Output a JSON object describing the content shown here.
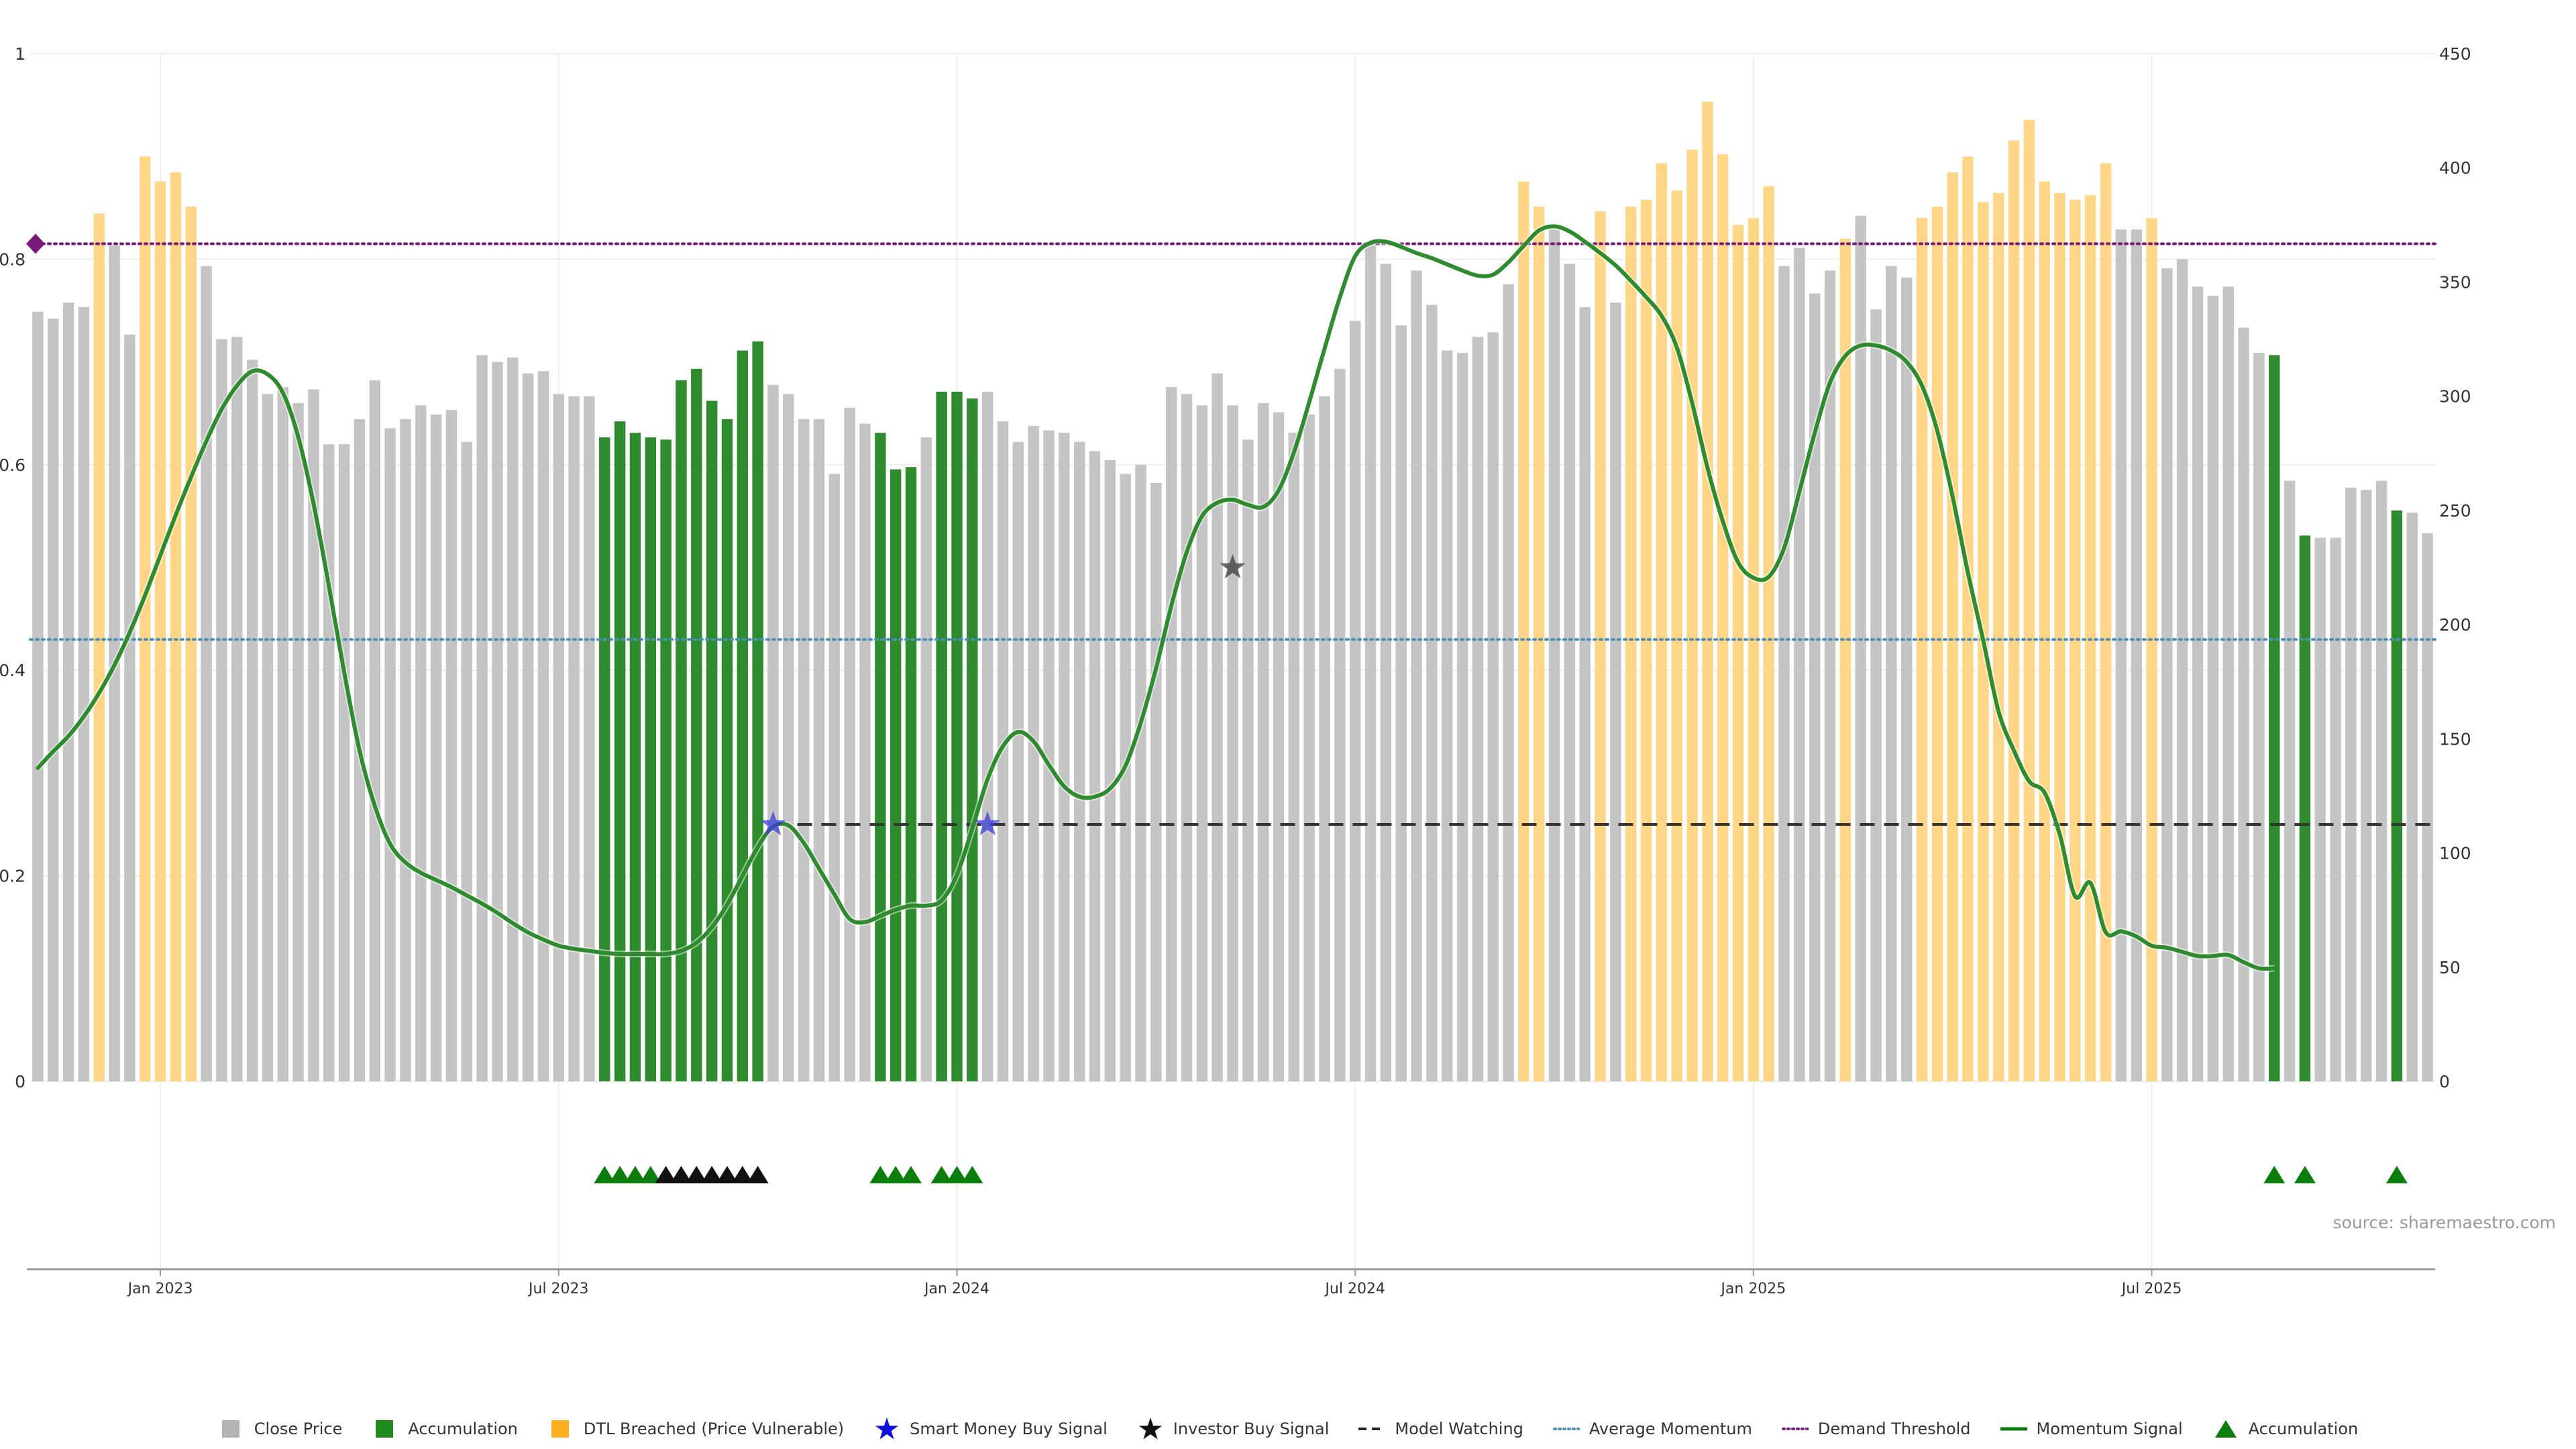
{
  "chart_data": {
    "type": "bar",
    "title": "",
    "xlabel": "",
    "ylabel": "",
    "y_left_lim": [
      0,
      1
    ],
    "y_left_ticks": [
      "0",
      "0.2",
      "0.4",
      "0.6",
      "0.8",
      "1"
    ],
    "y_right_lim": [
      0,
      450
    ],
    "y_right_ticks": [
      "0",
      "50",
      "100",
      "150",
      "200",
      "250",
      "300",
      "350",
      "400",
      "450"
    ],
    "x_tick_labels": [
      "Jan 2023",
      "Jul 2023",
      "Jan 2024",
      "Jul 2024",
      "Jan 2025",
      "Jul 2025"
    ],
    "x_tick_bar_index": [
      8,
      34,
      60,
      86,
      112,
      138
    ],
    "bar_count": 157,
    "close_price_values": [
      337,
      334,
      341,
      339,
      380,
      366,
      327,
      405,
      394,
      398,
      383,
      357,
      325,
      326,
      316,
      301,
      304,
      297,
      303,
      279,
      279,
      290,
      307,
      286,
      290,
      296,
      292,
      294,
      280,
      318,
      315,
      317,
      310,
      311,
      301,
      300,
      300,
      282,
      289,
      284,
      282,
      281,
      307,
      312,
      298,
      290,
      320,
      324,
      305,
      301,
      290,
      290,
      266,
      295,
      288,
      284,
      268,
      269,
      282,
      302,
      302,
      299,
      302,
      289,
      280,
      287,
      285,
      284,
      280,
      276,
      272,
      266,
      270,
      262,
      304,
      301,
      296,
      310,
      296,
      281,
      297,
      293,
      284,
      292,
      300,
      312,
      333,
      366,
      358,
      331,
      355,
      340,
      320,
      319,
      326,
      328,
      349,
      394,
      383,
      373,
      358,
      339,
      381,
      341,
      383,
      386,
      402,
      390,
      408,
      429,
      406,
      375,
      378,
      392,
      357,
      365,
      345,
      355,
      369,
      379,
      338,
      357,
      352,
      378,
      383,
      398,
      405,
      385,
      389,
      412,
      421,
      394,
      389,
      386,
      388,
      402,
      373,
      373,
      378,
      356,
      360,
      348,
      344,
      348,
      330,
      319,
      318,
      263,
      239,
      238,
      238,
      260,
      259,
      263,
      250,
      249,
      240,
      240,
      240
    ],
    "bar_category": [
      "close",
      "close",
      "close",
      "close",
      "dtl",
      "close",
      "close",
      "dtl",
      "dtl",
      "dtl",
      "dtl",
      "close",
      "close",
      "close",
      "close",
      "close",
      "close",
      "close",
      "close",
      "close",
      "close",
      "close",
      "close",
      "close",
      "close",
      "close",
      "close",
      "close",
      "close",
      "close",
      "close",
      "close",
      "close",
      "close",
      "close",
      "close",
      "close",
      "close",
      "close",
      "close",
      "close",
      "close",
      "close",
      "close",
      "close",
      "close",
      "close",
      "close",
      "close",
      "close",
      "close",
      "close",
      "close",
      "close",
      "close",
      "close",
      "close",
      "close",
      "close",
      "close",
      "close",
      "close",
      "close",
      "close",
      "close",
      "close",
      "close",
      "close",
      "close",
      "close",
      "close",
      "close",
      "close",
      "close",
      "close",
      "close",
      "close",
      "close",
      "close",
      "close",
      "close",
      "close",
      "close",
      "close",
      "close",
      "close",
      "close",
      "close",
      "close",
      "close",
      "close",
      "close",
      "close",
      "close",
      "close",
      "close",
      "close",
      "dtl",
      "dtl",
      "close",
      "close",
      "close",
      "dtl",
      "close",
      "dtl",
      "dtl",
      "dtl",
      "dtl",
      "dtl",
      "dtl",
      "dtl",
      "dtl",
      "dtl",
      "dtl",
      "close",
      "close",
      "close",
      "close",
      "dtl",
      "close",
      "close",
      "close",
      "close",
      "dtl",
      "dtl",
      "dtl",
      "dtl",
      "dtl",
      "dtl",
      "dtl",
      "dtl",
      "dtl",
      "dtl",
      "dtl",
      "dtl",
      "dtl",
      "close",
      "close",
      "dtl",
      "close",
      "close",
      "close",
      "close",
      "close",
      "close",
      "close",
      "close",
      "close",
      "close",
      "close",
      "close",
      "close",
      "close",
      "close",
      "close",
      "close",
      "close",
      "close",
      "close",
      "close",
      "close",
      "close"
    ],
    "accumulation_bar_index": [
      37,
      38,
      39,
      40,
      41,
      42,
      43,
      44,
      45,
      46,
      47,
      55,
      56,
      57,
      59,
      60,
      61,
      146,
      148,
      154
    ],
    "momentum_signal": [
      [
        0,
        0.305
      ],
      [
        1,
        0.321
      ],
      [
        2,
        0.336
      ],
      [
        3,
        0.355
      ],
      [
        4,
        0.378
      ],
      [
        5,
        0.405
      ],
      [
        6,
        0.437
      ],
      [
        7,
        0.473
      ],
      [
        8,
        0.512
      ],
      [
        9,
        0.551
      ],
      [
        10,
        0.588
      ],
      [
        11,
        0.623
      ],
      [
        12,
        0.654
      ],
      [
        13,
        0.677
      ],
      [
        14,
        0.691
      ],
      [
        15,
        0.688
      ],
      [
        16,
        0.67
      ],
      [
        17,
        0.627
      ],
      [
        18,
        0.562
      ],
      [
        19,
        0.482
      ],
      [
        20,
        0.398
      ],
      [
        21,
        0.322
      ],
      [
        22,
        0.268
      ],
      [
        23,
        0.231
      ],
      [
        24,
        0.213
      ],
      [
        25,
        0.203
      ],
      [
        26,
        0.196
      ],
      [
        27,
        0.189
      ],
      [
        28,
        0.181
      ],
      [
        29,
        0.173
      ],
      [
        30,
        0.164
      ],
      [
        31,
        0.154
      ],
      [
        32,
        0.145
      ],
      [
        33,
        0.138
      ],
      [
        34,
        0.132
      ],
      [
        35,
        0.129
      ],
      [
        36,
        0.127
      ],
      [
        37,
        0.125
      ],
      [
        38,
        0.124
      ],
      [
        39,
        0.124
      ],
      [
        40,
        0.124
      ],
      [
        41,
        0.124
      ],
      [
        42,
        0.127
      ],
      [
        43,
        0.135
      ],
      [
        44,
        0.15
      ],
      [
        45,
        0.172
      ],
      [
        46,
        0.2
      ],
      [
        47,
        0.228
      ],
      [
        48,
        0.248
      ],
      [
        49,
        0.249
      ],
      [
        50,
        0.232
      ],
      [
        51,
        0.207
      ],
      [
        52,
        0.182
      ],
      [
        53,
        0.158
      ],
      [
        54,
        0.155
      ],
      [
        55,
        0.161
      ],
      [
        56,
        0.167
      ],
      [
        57,
        0.171
      ],
      [
        58,
        0.171
      ],
      [
        59,
        0.176
      ],
      [
        60,
        0.201
      ],
      [
        61,
        0.246
      ],
      [
        62,
        0.294
      ],
      [
        63,
        0.326
      ],
      [
        64,
        0.34
      ],
      [
        65,
        0.331
      ],
      [
        66,
        0.308
      ],
      [
        67,
        0.287
      ],
      [
        68,
        0.277
      ],
      [
        69,
        0.277
      ],
      [
        70,
        0.285
      ],
      [
        71,
        0.307
      ],
      [
        72,
        0.349
      ],
      [
        73,
        0.402
      ],
      [
        74,
        0.463
      ],
      [
        75,
        0.515
      ],
      [
        76,
        0.55
      ],
      [
        77,
        0.563
      ],
      [
        78,
        0.566
      ],
      [
        79,
        0.561
      ],
      [
        80,
        0.559
      ],
      [
        81,
        0.575
      ],
      [
        82,
        0.612
      ],
      [
        83,
        0.661
      ],
      [
        84,
        0.713
      ],
      [
        85,
        0.763
      ],
      [
        86,
        0.803
      ],
      [
        87,
        0.816
      ],
      [
        88,
        0.817
      ],
      [
        89,
        0.812
      ],
      [
        90,
        0.806
      ],
      [
        91,
        0.801
      ],
      [
        92,
        0.795
      ],
      [
        93,
        0.789
      ],
      [
        94,
        0.784
      ],
      [
        95,
        0.785
      ],
      [
        96,
        0.797
      ],
      [
        97,
        0.813
      ],
      [
        98,
        0.828
      ],
      [
        99,
        0.832
      ],
      [
        100,
        0.827
      ],
      [
        101,
        0.817
      ],
      [
        102,
        0.806
      ],
      [
        103,
        0.794
      ],
      [
        104,
        0.779
      ],
      [
        105,
        0.763
      ],
      [
        106,
        0.745
      ],
      [
        107,
        0.714
      ],
      [
        108,
        0.66
      ],
      [
        109,
        0.597
      ],
      [
        110,
        0.545
      ],
      [
        111,
        0.505
      ],
      [
        112,
        0.49
      ],
      [
        113,
        0.491
      ],
      [
        114,
        0.519
      ],
      [
        115,
        0.574
      ],
      [
        116,
        0.631
      ],
      [
        117,
        0.68
      ],
      [
        118,
        0.706
      ],
      [
        119,
        0.716
      ],
      [
        120,
        0.716
      ],
      [
        121,
        0.711
      ],
      [
        122,
        0.7
      ],
      [
        123,
        0.677
      ],
      [
        124,
        0.633
      ],
      [
        125,
        0.569
      ],
      [
        126,
        0.495
      ],
      [
        127,
        0.429
      ],
      [
        128,
        0.36
      ],
      [
        129,
        0.322
      ],
      [
        130,
        0.292
      ],
      [
        131,
        0.281
      ],
      [
        132,
        0.24
      ],
      [
        133,
        0.18
      ],
      [
        134,
        0.193
      ],
      [
        135,
        0.145
      ],
      [
        136,
        0.146
      ],
      [
        137,
        0.141
      ],
      [
        138,
        0.132
      ],
      [
        139,
        0.13
      ],
      [
        140,
        0.126
      ],
      [
        141,
        0.122
      ],
      [
        142,
        0.122
      ],
      [
        143,
        0.123
      ],
      [
        144,
        0.116
      ],
      [
        145,
        0.11
      ],
      [
        146,
        0.11
      ]
    ],
    "model_watching_level": 0.25,
    "model_watching_start_index": 48,
    "average_momentum_level": 0.43,
    "demand_threshold_level": 0.815,
    "demand_marker_index": 0,
    "smart_money_signals": [
      [
        48,
        0.25
      ],
      [
        62,
        0.25
      ]
    ],
    "investor_signals": [
      [
        78,
        0.5
      ]
    ],
    "triangle_markers": [
      {
        "index": 37,
        "kind": "accumulation"
      },
      {
        "index": 38,
        "kind": "accumulation"
      },
      {
        "index": 39,
        "kind": "accumulation"
      },
      {
        "index": 40,
        "kind": "accumulation"
      },
      {
        "index": 41,
        "kind": "investor"
      },
      {
        "index": 42,
        "kind": "investor"
      },
      {
        "index": 43,
        "kind": "investor"
      },
      {
        "index": 44,
        "kind": "investor"
      },
      {
        "index": 45,
        "kind": "investor"
      },
      {
        "index": 46,
        "kind": "investor"
      },
      {
        "index": 47,
        "kind": "investor"
      },
      {
        "index": 55,
        "kind": "accumulation"
      },
      {
        "index": 56,
        "kind": "accumulation"
      },
      {
        "index": 57,
        "kind": "accumulation"
      },
      {
        "index": 59,
        "kind": "accumulation"
      },
      {
        "index": 60,
        "kind": "accumulation"
      },
      {
        "index": 61,
        "kind": "accumulation"
      },
      {
        "index": 146,
        "kind": "accumulation"
      },
      {
        "index": 148,
        "kind": "accumulation"
      },
      {
        "index": 154,
        "kind": "accumulation"
      }
    ],
    "colors": {
      "close": "#c4c4c4",
      "accumulation": "#2e8b2e",
      "dtl": "#ffd588",
      "momentum": "#2e8b2e",
      "momentum_strong": "#0a7d0a",
      "smart_money": "#3b3bdc",
      "investor": "#444444",
      "model_watching": "#333333",
      "average_momentum": "#4a90b8",
      "demand_threshold": "#7a1a7a",
      "grid": "#eeeeee",
      "axis": "#999999",
      "text": "#333333"
    }
  },
  "source_text": "source: sharemaestro.com",
  "legend": [
    {
      "label": "Close Price",
      "key": "square",
      "color": "#b4b4b4"
    },
    {
      "label": "Accumulation",
      "key": "square",
      "color": "#1f8b1f"
    },
    {
      "label": "DTL Breached (Price Vulnerable)",
      "key": "square",
      "color": "#ffb020"
    },
    {
      "label": "Smart Money Buy Signal",
      "key": "star",
      "color": "#1010dd"
    },
    {
      "label": "Investor Buy Signal",
      "key": "star",
      "color": "#111111"
    },
    {
      "label": "Model Watching",
      "key": "dash",
      "color": "#222222"
    },
    {
      "label": "Average Momentum",
      "key": "dot",
      "color": "#4a90b8"
    },
    {
      "label": "Demand Threshold",
      "key": "dot",
      "color": "#7a1a7a"
    },
    {
      "label": "Momentum Signal",
      "key": "line",
      "color": "#0a7d0a"
    },
    {
      "label": "Accumulation",
      "key": "triangle",
      "color": "#0a7d0a"
    }
  ]
}
